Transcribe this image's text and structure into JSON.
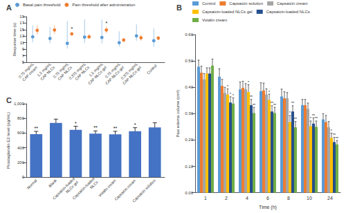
{
  "chart_data": [
    {
      "type": "scatter",
      "title": "A",
      "categories": [
        "0.75 mg/mL\nCAP cream",
        "1.5 mg/mL\nCAP NLCs",
        "0.75 mg/mL\nCAP NLCs",
        "0.375 mg/mL\nCAP NLCs",
        "1.5 mg/mL\nCAP NLCs gel",
        "0.75 mg/mL\nCAP NLCs gel",
        "0.375 mg/mL\nCAP NLCs gel",
        "Control"
      ],
      "ylabel": "Response time (s)",
      "ylim": [
        5,
        19
      ],
      "yticks": [
        5,
        7,
        9,
        11,
        13,
        15,
        17,
        19
      ],
      "grid": false,
      "legend": "top",
      "series": [
        {
          "name": "Basal pain threshold",
          "color": "#5b9bd5",
          "marker": "circle",
          "values": [
            12.8,
            12.3,
            10.8,
            12.7,
            12.6,
            11.0,
            13.1,
            11.6
          ],
          "err_low": [
            1.7,
            1.5,
            1.6,
            1.8,
            1.8,
            1.3,
            1.5,
            1.9
          ],
          "err_high": [
            3.5,
            3.5,
            6.8,
            5.5,
            5.5,
            3.5,
            3.5,
            3.8
          ]
        },
        {
          "name": "Pain threshold after administration",
          "color": "#ed7d31",
          "marker": "circle",
          "values": [
            14.8,
            14.9,
            13.7,
            12.8,
            14.9,
            11.8,
            12.5,
            12.4
          ],
          "err_low": [
            1.3,
            1.2,
            0.5,
            0.6,
            1.0,
            0.6,
            0.9,
            0.6
          ],
          "err_high": [
            1.5,
            1.4,
            0.6,
            0.8,
            1.1,
            0.6,
            1.1,
            0.7
          ]
        }
      ],
      "annotations": [
        {
          "series": 1,
          "index": 2,
          "text": "*"
        },
        {
          "series": 1,
          "index": 4,
          "text": "*"
        }
      ]
    },
    {
      "type": "bar",
      "title": "B",
      "categories": [
        "1",
        "2",
        "4",
        "6",
        "8",
        "10",
        "24"
      ],
      "xlabel": "Time (h)",
      "ylabel": "Paw edema volume (cm³)",
      "ylim": [
        0.0,
        0.6
      ],
      "yticks": [
        {
          "value": 0.0,
          "label": "0.00"
        },
        {
          "value": 0.1,
          "label": "0.10"
        },
        {
          "value": 0.2,
          "label": "0.20"
        },
        {
          "value": 0.3,
          "label": "0.30"
        },
        {
          "value": 0.4,
          "label": "0.40"
        },
        {
          "value": 0.5,
          "label": "0.50"
        },
        {
          "value": 0.6,
          "label": "0.60"
        }
      ],
      "grid": false,
      "legend": "top",
      "series": [
        {
          "name": "Control",
          "color": "#5b9bd5",
          "values": [
            0.478,
            0.44,
            0.392,
            0.385,
            0.365,
            0.332,
            0.278
          ],
          "errors": [
            0.025,
            0.03,
            0.028,
            0.032,
            0.028,
            0.022,
            0.022
          ]
        },
        {
          "name": "Capsaicin solution",
          "color": "#ed7d31",
          "values": [
            0.455,
            0.405,
            0.398,
            0.388,
            0.358,
            0.332,
            0.268
          ],
          "errors": [
            0.025,
            0.025,
            0.025,
            0.028,
            0.025,
            0.022,
            0.025
          ]
        },
        {
          "name": "Capsaicin cream",
          "color": "#a5a5a5",
          "values": [
            0.43,
            0.378,
            0.392,
            0.372,
            0.358,
            0.318,
            0.248
          ],
          "errors": [
            0.022,
            0.022,
            0.022,
            0.022,
            0.022,
            0.022,
            0.022
          ]
        },
        {
          "name": "Capsaicin-loaded NLCs gel",
          "color": "#ffc000",
          "values": [
            0.452,
            0.372,
            0.382,
            0.352,
            0.268,
            0.252,
            0.208
          ],
          "errors": [
            0.022,
            0.022,
            0.028,
            0.022,
            0.025,
            0.02,
            0.018
          ]
        },
        {
          "name": "Capsaicin-loaded NLCs",
          "color": "#264f8c",
          "values": [
            0.452,
            0.342,
            0.332,
            0.308,
            0.308,
            0.262,
            0.192
          ],
          "errors": [
            0.022,
            0.022,
            0.022,
            0.022,
            0.022,
            0.022,
            0.018
          ]
        },
        {
          "name": "Votalin cream",
          "color": "#70ad47",
          "values": [
            0.482,
            0.338,
            0.302,
            0.302,
            0.248,
            0.25,
            0.183
          ],
          "errors": [
            0.025,
            0.022,
            0.022,
            0.022,
            0.022,
            0.022,
            0.015
          ]
        }
      ],
      "annotations": [
        {
          "series": 3,
          "index": 1,
          "text": "*"
        },
        {
          "series": 4,
          "index": 1,
          "text": "*"
        },
        {
          "series": 5,
          "index": 1,
          "text": "*"
        },
        {
          "series": 3,
          "index": 2,
          "text": "*"
        },
        {
          "series": 4,
          "index": 2,
          "text": "**"
        },
        {
          "series": 5,
          "index": 2,
          "text": "**"
        },
        {
          "series": 3,
          "index": 3,
          "text": "*"
        },
        {
          "series": 4,
          "index": 3,
          "text": "**"
        },
        {
          "series": 5,
          "index": 3,
          "text": "**"
        },
        {
          "series": 3,
          "index": 4,
          "text": "*"
        },
        {
          "series": 4,
          "index": 4,
          "text": "**"
        },
        {
          "series": 5,
          "index": 4,
          "text": "**"
        },
        {
          "series": 3,
          "index": 5,
          "text": "*"
        },
        {
          "series": 4,
          "index": 5,
          "text": "**"
        },
        {
          "series": 5,
          "index": 5,
          "text": "**"
        },
        {
          "series": 3,
          "index": 6,
          "text": "*"
        },
        {
          "series": 4,
          "index": 6,
          "text": "**"
        },
        {
          "series": 5,
          "index": 6,
          "text": "**"
        }
      ]
    },
    {
      "type": "bar",
      "title": "C",
      "categories": [
        "Normal",
        "Blank",
        "Capsaicin-loaded\nNLCs gel",
        "Capsaicin-loaded\nNLCs",
        "Votalin cream",
        "Capsaicin cream",
        "Capsaicin solution"
      ],
      "ylabel": "Prostaglandin E2 level (pg/mL)",
      "ylim": [
        0,
        1000
      ],
      "yticks": [
        0,
        200,
        400,
        600,
        800,
        {
          "value": 1000,
          "label": "1,000"
        }
      ],
      "grid": false,
      "color": "#4472c4",
      "values": [
        585,
        738,
        645,
        592,
        582,
        625,
        678
      ],
      "errors": [
        38,
        52,
        48,
        38,
        42,
        48,
        62
      ],
      "annotations": [
        {
          "index": 0,
          "text": "**"
        },
        {
          "index": 2,
          "text": "*"
        },
        {
          "index": 3,
          "text": "**"
        },
        {
          "index": 4,
          "text": "**"
        },
        {
          "index": 5,
          "text": "*"
        }
      ]
    }
  ]
}
